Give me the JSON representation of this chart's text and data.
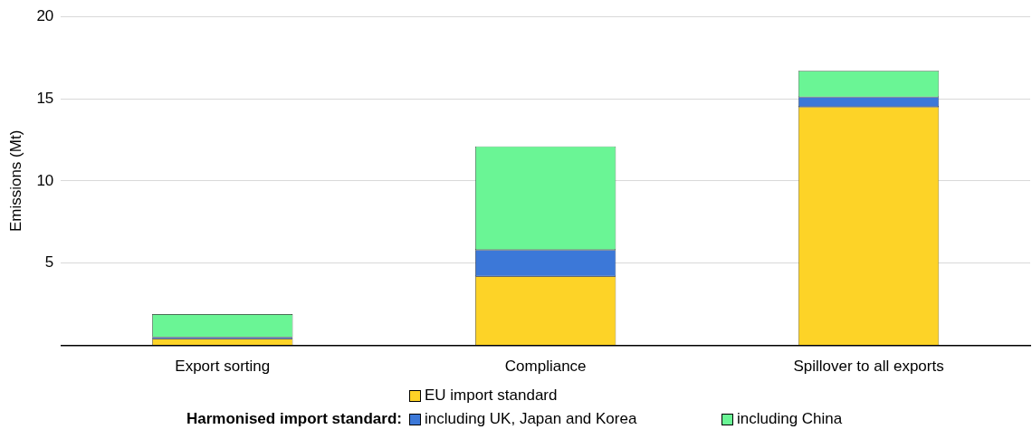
{
  "chart_data": {
    "type": "bar",
    "stacked": true,
    "ylabel": "Emissions (Mt)",
    "legend_title": "Harmonised import standard:",
    "legend": "bottom",
    "grid": "y",
    "categories": [
      "Export sorting",
      "Compliance",
      "Spillover to all exports"
    ],
    "series": [
      {
        "name": "EU import standard",
        "color": "#fdd327",
        "values": [
          0.4,
          4.2,
          14.5
        ]
      },
      {
        "name": "including UK, Japan and Korea",
        "color": "#3c78d8",
        "values": [
          0.1,
          1.6,
          0.6
        ]
      },
      {
        "name": "including China",
        "color": "#6af595",
        "values": [
          1.4,
          6.3,
          1.6
        ]
      }
    ],
    "ylim": [
      0,
      20
    ],
    "yticks": [
      {
        "value": 0,
        "label": null
      },
      5,
      10,
      15,
      20
    ]
  }
}
